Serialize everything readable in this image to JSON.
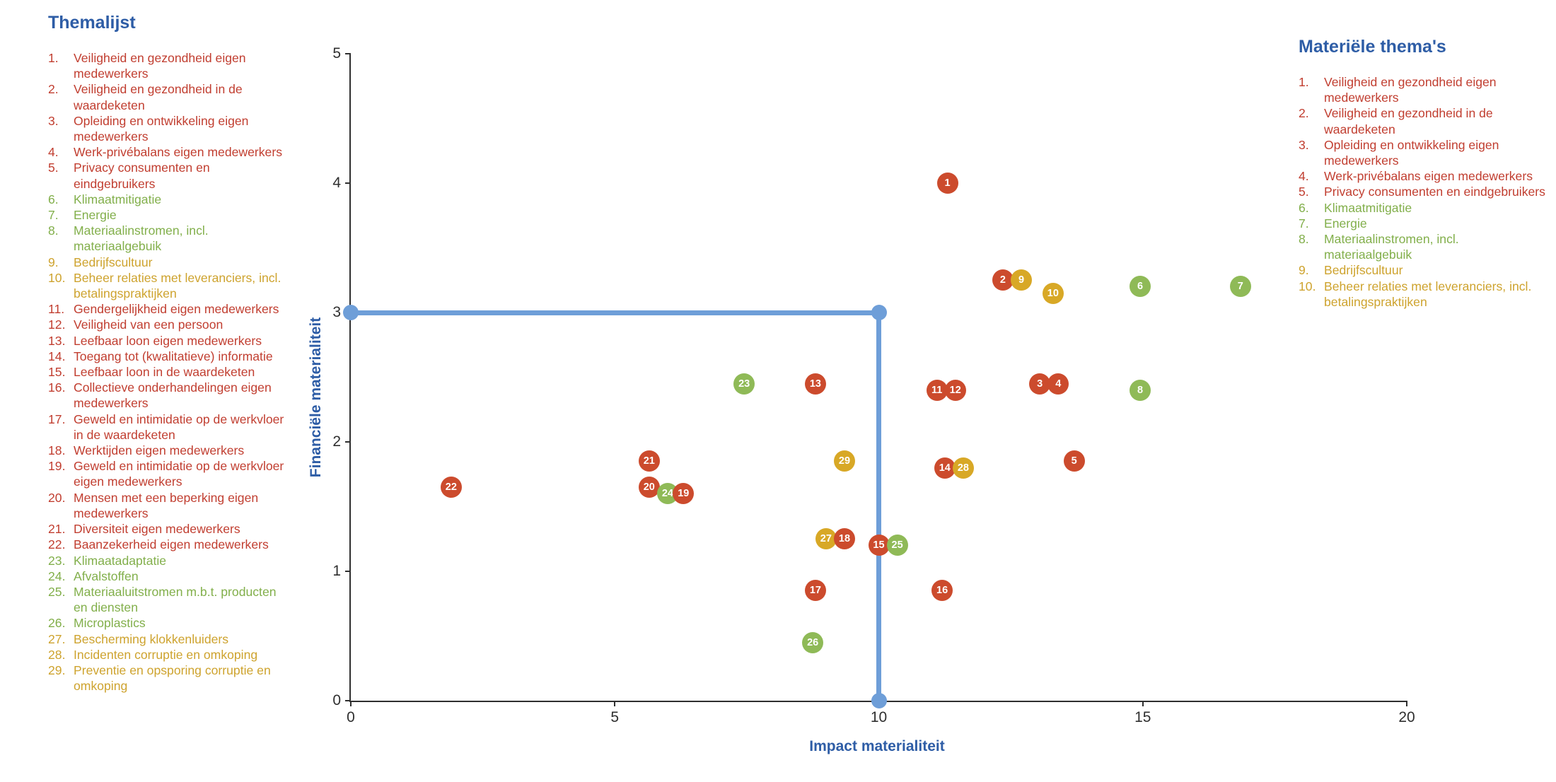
{
  "colors": {
    "heading": "#2E5DA6",
    "axis": "#2F2F2F",
    "threshold": "#6E9ED8",
    "text": {
      "social": "#C13E30",
      "environment": "#82AF4B",
      "governance": "#CEA32E"
    },
    "bubble": {
      "social": "#CC4B2D",
      "environment": "#8FBA57",
      "governance": "#D8A826"
    }
  },
  "left_list": {
    "title": "Themalijst",
    "items": [
      {
        "num": "1.",
        "label": "Veiligheid en gezondheid eigen medewerkers",
        "category": "social"
      },
      {
        "num": "2.",
        "label": "Veiligheid en gezondheid in de waardeketen",
        "category": "social"
      },
      {
        "num": "3.",
        "label": "Opleiding en ontwikkeling eigen medewerkers",
        "category": "social"
      },
      {
        "num": "4.",
        "label": "Werk-privébalans eigen medewerkers",
        "category": "social"
      },
      {
        "num": "5.",
        "label": "Privacy consumenten en eindgebruikers",
        "category": "social"
      },
      {
        "num": "6.",
        "label": "Klimaatmitigatie",
        "category": "environment"
      },
      {
        "num": "7.",
        "label": "Energie",
        "category": "environment"
      },
      {
        "num": "8.",
        "label": "Materiaalinstromen, incl. materiaalgebuik",
        "category": "environment"
      },
      {
        "num": "9.",
        "label": "Bedrijfscultuur",
        "category": "governance"
      },
      {
        "num": "10.",
        "label": "Beheer relaties met leveranciers, incl. betalingspraktijken",
        "category": "governance"
      },
      {
        "num": "11.",
        "label": "Gendergelijkheid eigen medewerkers",
        "category": "social"
      },
      {
        "num": "12.",
        "label": "Veiligheid van een persoon",
        "category": "social"
      },
      {
        "num": "13.",
        "label": "Leefbaar loon eigen medewerkers",
        "category": "social"
      },
      {
        "num": "14.",
        "label": "Toegang tot (kwalitatieve) informatie",
        "category": "social"
      },
      {
        "num": "15.",
        "label": "Leefbaar loon in de waardeketen",
        "category": "social"
      },
      {
        "num": "16.",
        "label": "Collectieve onderhandelingen eigen medewerkers",
        "category": "social"
      },
      {
        "num": "17.",
        "label": "Geweld en intimidatie op de werkvloer in de waardeketen",
        "category": "social"
      },
      {
        "num": "18.",
        "label": "Werktijden eigen medewerkers",
        "category": "social"
      },
      {
        "num": "19.",
        "label": "Geweld en intimidatie op de werkvloer eigen medewerkers",
        "category": "social"
      },
      {
        "num": "20.",
        "label": "Mensen met een beperking eigen medewerkers",
        "category": "social"
      },
      {
        "num": "21.",
        "label": "Diversiteit eigen medewerkers",
        "category": "social"
      },
      {
        "num": "22.",
        "label": "Baanzekerheid eigen medewerkers",
        "category": "social"
      },
      {
        "num": "23.",
        "label": "Klimaatadaptatie",
        "category": "environment"
      },
      {
        "num": "24.",
        "label": "Afvalstoffen",
        "category": "environment"
      },
      {
        "num": "25.",
        "label": "Materiaaluitstromen m.b.t. producten en diensten",
        "category": "environment"
      },
      {
        "num": "26.",
        "label": "Microplastics",
        "category": "environment"
      },
      {
        "num": "27.",
        "label": "Bescherming klokkenluiders",
        "category": "governance"
      },
      {
        "num": "28.",
        "label": "Incidenten corruptie en omkoping",
        "category": "governance"
      },
      {
        "num": "29.",
        "label": "Preventie en opsporing corruptie en omkoping",
        "category": "governance"
      }
    ]
  },
  "right_list": {
    "title": "Materiële thema's",
    "items": [
      {
        "num": "1.",
        "label": "Veiligheid en gezondheid eigen medewerkers",
        "category": "social"
      },
      {
        "num": "2.",
        "label": "Veiligheid en gezondheid in de waardeketen",
        "category": "social"
      },
      {
        "num": "3.",
        "label": "Opleiding en ontwikkeling eigen medewerkers",
        "category": "social"
      },
      {
        "num": "4.",
        "label": "Werk-privébalans eigen medewerkers",
        "category": "social"
      },
      {
        "num": "5.",
        "label": "Privacy consumenten en eindgebruikers",
        "category": "social"
      },
      {
        "num": "6.",
        "label": "Klimaatmitigatie",
        "category": "environment"
      },
      {
        "num": "7.",
        "label": "Energie",
        "category": "environment"
      },
      {
        "num": "8.",
        "label": "Materiaalinstromen, incl. materiaalgebuik",
        "category": "environment"
      },
      {
        "num": "9.",
        "label": "Bedrijfscultuur",
        "category": "governance"
      },
      {
        "num": "10.",
        "label": "Beheer relaties met leveranciers, incl. betalingspraktijken",
        "category": "governance"
      }
    ]
  },
  "chart_data": {
    "type": "scatter",
    "xlabel": "Impact materialiteit",
    "ylabel": "Financiële materialiteit",
    "xlim": [
      0,
      20
    ],
    "ylim": [
      0,
      5
    ],
    "x_ticks": [
      0,
      5,
      10,
      15,
      20
    ],
    "y_ticks": [
      0,
      1,
      2,
      3,
      4,
      5
    ],
    "grid": false,
    "threshold": {
      "x": 10,
      "y": 3
    },
    "points": [
      {
        "id": "1",
        "x": 11.3,
        "y": 4.0,
        "category": "social"
      },
      {
        "id": "2",
        "x": 12.35,
        "y": 3.25,
        "category": "social"
      },
      {
        "id": "9",
        "x": 12.7,
        "y": 3.25,
        "category": "governance"
      },
      {
        "id": "10",
        "x": 13.3,
        "y": 3.15,
        "category": "governance"
      },
      {
        "id": "6",
        "x": 14.95,
        "y": 3.2,
        "category": "environment"
      },
      {
        "id": "7",
        "x": 16.85,
        "y": 3.2,
        "category": "environment"
      },
      {
        "id": "23",
        "x": 7.45,
        "y": 2.45,
        "category": "environment"
      },
      {
        "id": "13",
        "x": 8.8,
        "y": 2.45,
        "category": "social"
      },
      {
        "id": "11",
        "x": 11.1,
        "y": 2.4,
        "category": "social"
      },
      {
        "id": "12",
        "x": 11.45,
        "y": 2.4,
        "category": "social"
      },
      {
        "id": "3",
        "x": 13.05,
        "y": 2.45,
        "category": "social"
      },
      {
        "id": "4",
        "x": 13.4,
        "y": 2.45,
        "category": "social"
      },
      {
        "id": "8",
        "x": 14.95,
        "y": 2.4,
        "category": "environment"
      },
      {
        "id": "21",
        "x": 5.65,
        "y": 1.85,
        "category": "social"
      },
      {
        "id": "29",
        "x": 9.35,
        "y": 1.85,
        "category": "governance"
      },
      {
        "id": "14",
        "x": 11.25,
        "y": 1.8,
        "category": "social"
      },
      {
        "id": "28",
        "x": 11.6,
        "y": 1.8,
        "category": "governance"
      },
      {
        "id": "5",
        "x": 13.7,
        "y": 1.85,
        "category": "social"
      },
      {
        "id": "22",
        "x": 1.9,
        "y": 1.65,
        "category": "social"
      },
      {
        "id": "20",
        "x": 5.65,
        "y": 1.65,
        "category": "social"
      },
      {
        "id": "24",
        "x": 6.0,
        "y": 1.6,
        "category": "environment"
      },
      {
        "id": "19",
        "x": 6.3,
        "y": 1.6,
        "category": "social"
      },
      {
        "id": "27",
        "x": 9.0,
        "y": 1.25,
        "category": "governance"
      },
      {
        "id": "18",
        "x": 9.35,
        "y": 1.25,
        "category": "social"
      },
      {
        "id": "15",
        "x": 10.0,
        "y": 1.2,
        "category": "social"
      },
      {
        "id": "25",
        "x": 10.35,
        "y": 1.2,
        "category": "environment"
      },
      {
        "id": "17",
        "x": 8.8,
        "y": 0.85,
        "category": "social"
      },
      {
        "id": "16",
        "x": 11.2,
        "y": 0.85,
        "category": "social"
      },
      {
        "id": "26",
        "x": 8.75,
        "y": 0.45,
        "category": "environment"
      }
    ]
  }
}
